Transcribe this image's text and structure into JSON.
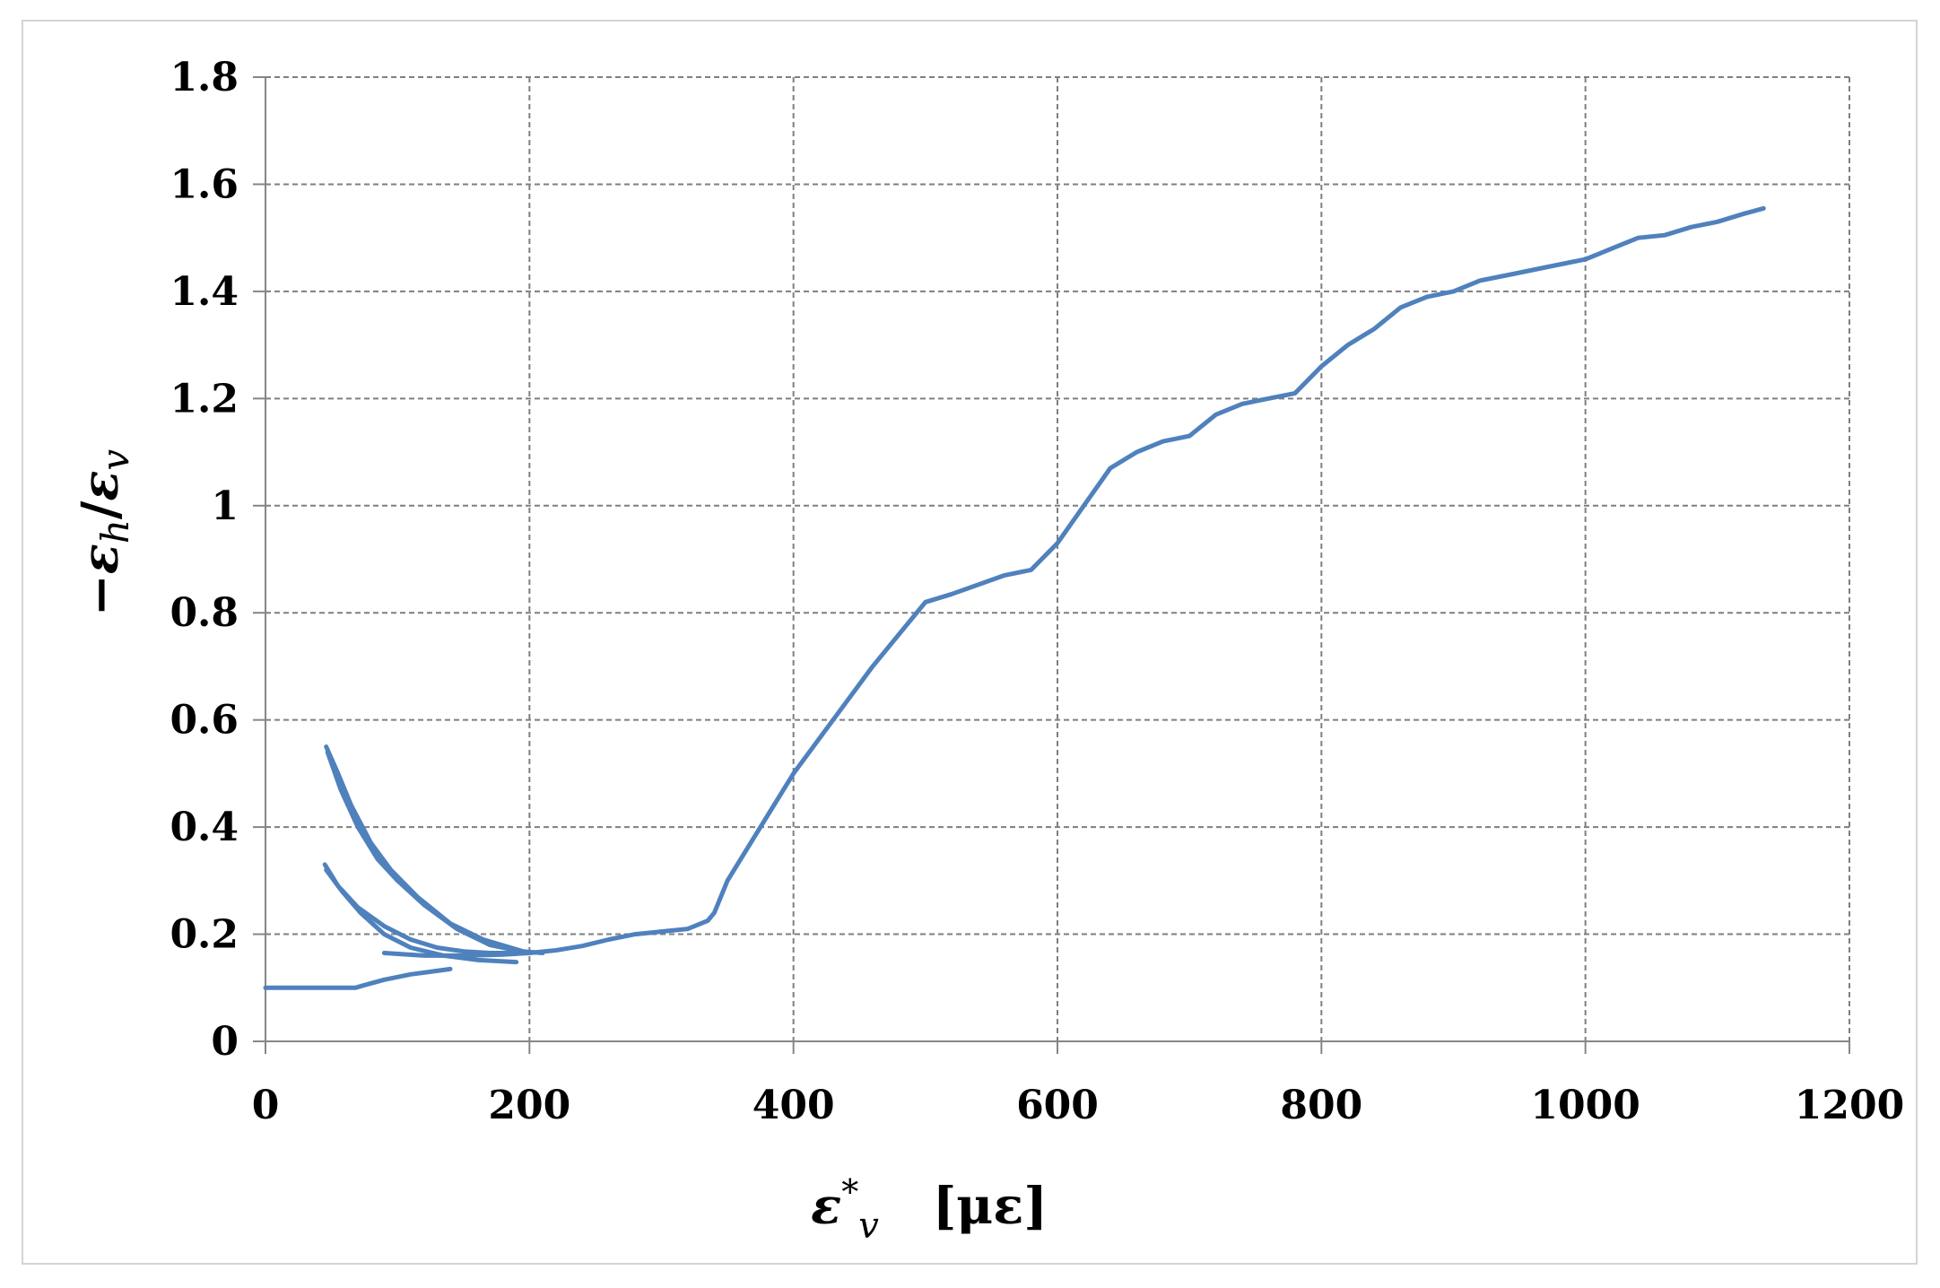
{
  "chart_data": {
    "type": "line",
    "xlabel": {
      "symbol": "ε",
      "superscript": "*",
      "subscript": "v",
      "unit": "[με]"
    },
    "ylabel": {
      "minus": "−",
      "numerator_symbol": "ε",
      "numerator_subscript": "h",
      "slash": "/",
      "denominator_symbol": "ε",
      "denominator_subscript": "v"
    },
    "xlim": [
      0,
      1200
    ],
    "ylim": [
      0,
      1.8
    ],
    "x_ticks": [
      0,
      200,
      400,
      600,
      800,
      1000,
      1200
    ],
    "y_ticks": [
      0,
      0.2,
      0.4,
      0.6,
      0.8,
      1.0,
      1.2,
      1.4,
      1.6,
      1.8
    ],
    "x_tick_labels": [
      "0",
      "200",
      "400",
      "600",
      "800",
      "1000",
      "1200"
    ],
    "y_tick_labels": [
      "0",
      "0.2",
      "0.4",
      "0.6",
      "0.8",
      "1",
      "1.2",
      "1.4",
      "1.6",
      "1.8"
    ],
    "grid": true,
    "grid_style": "dashed",
    "legend": "none",
    "series": [
      {
        "color": "#4f81bd",
        "x": [
          0,
          45,
          68,
          75,
          90,
          110,
          125,
          140
        ],
        "y": [
          0.1,
          0.1,
          0.1,
          0.105,
          0.115,
          0.125,
          0.13,
          0.135
        ]
      },
      {
        "color": "#4f81bd",
        "x": [
          45,
          55,
          70,
          90,
          110,
          130,
          150,
          170,
          190
        ],
        "y": [
          0.33,
          0.29,
          0.25,
          0.215,
          0.19,
          0.175,
          0.168,
          0.165,
          0.165
        ]
      },
      {
        "color": "#4f81bd",
        "x": [
          46,
          58,
          72,
          90,
          110,
          135,
          160,
          190
        ],
        "y": [
          0.32,
          0.28,
          0.24,
          0.2,
          0.175,
          0.16,
          0.152,
          0.148
        ]
      },
      {
        "color": "#4f81bd",
        "x": [
          46,
          55,
          65,
          80,
          95,
          115,
          140,
          165,
          195,
          210
        ],
        "y": [
          0.55,
          0.5,
          0.44,
          0.37,
          0.32,
          0.27,
          0.22,
          0.19,
          0.168,
          0.165
        ]
      },
      {
        "color": "#4f81bd",
        "x": [
          47,
          57,
          70,
          85,
          100,
          120,
          145,
          170,
          200
        ],
        "y": [
          0.54,
          0.47,
          0.4,
          0.34,
          0.3,
          0.255,
          0.21,
          0.18,
          0.165
        ]
      },
      {
        "color": "#4f81bd",
        "x": [
          90,
          120,
          150,
          180,
          200,
          220,
          240,
          260,
          280,
          300,
          320,
          335,
          340,
          350,
          360,
          380,
          400,
          430,
          460,
          500,
          520,
          560,
          580,
          600,
          620,
          640,
          660,
          680,
          700,
          720,
          740,
          760,
          780,
          800,
          820,
          840,
          860,
          880,
          900,
          920,
          940,
          960,
          980,
          1000,
          1020,
          1040,
          1060,
          1080,
          1100,
          1120,
          1135
        ],
        "y": [
          0.165,
          0.16,
          0.16,
          0.162,
          0.165,
          0.17,
          0.178,
          0.19,
          0.2,
          0.205,
          0.21,
          0.225,
          0.24,
          0.3,
          0.34,
          0.42,
          0.5,
          0.6,
          0.7,
          0.82,
          0.835,
          0.87,
          0.88,
          0.93,
          1.0,
          1.07,
          1.1,
          1.12,
          1.13,
          1.17,
          1.19,
          1.2,
          1.21,
          1.26,
          1.3,
          1.33,
          1.37,
          1.39,
          1.4,
          1.42,
          1.43,
          1.44,
          1.45,
          1.46,
          1.48,
          1.5,
          1.505,
          1.52,
          1.53,
          1.545,
          1.555
        ]
      }
    ]
  }
}
